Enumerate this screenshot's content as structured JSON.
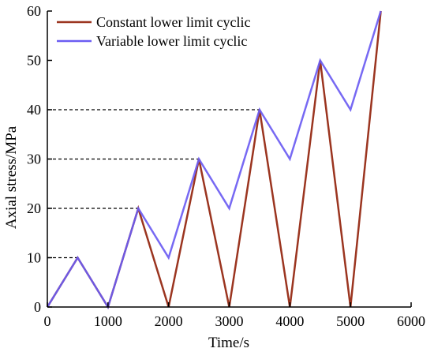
{
  "chart_data": {
    "type": "line",
    "xlabel": "Time/s",
    "ylabel": "Axial stress/MPa",
    "xlim": [
      0,
      6000
    ],
    "ylim": [
      0,
      60
    ],
    "xticks": [
      0,
      1000,
      2000,
      3000,
      4000,
      5000,
      6000
    ],
    "yticks": [
      0,
      10,
      20,
      30,
      40,
      50,
      60
    ],
    "grid": false,
    "legend_position": "top-left",
    "reference_lines": [
      10,
      20,
      30,
      40
    ],
    "series": [
      {
        "name": "Constant lower limit cyclic",
        "color": "#9b3520",
        "x": [
          0,
          500,
          1000,
          1500,
          2000,
          2500,
          3000,
          3500,
          4000,
          4500,
          5000,
          5500
        ],
        "y": [
          0,
          10,
          0,
          20,
          0,
          30,
          0,
          40,
          0,
          50,
          0,
          60
        ]
      },
      {
        "name": "Variable lower limit cyclic",
        "color": "#6b5cf2",
        "x": [
          0,
          500,
          1000,
          1500,
          2000,
          2500,
          3000,
          3500,
          4000,
          4500,
          5000,
          5500
        ],
        "y": [
          0,
          10,
          0,
          20,
          10,
          30,
          20,
          40,
          30,
          50,
          40,
          60
        ]
      }
    ]
  }
}
